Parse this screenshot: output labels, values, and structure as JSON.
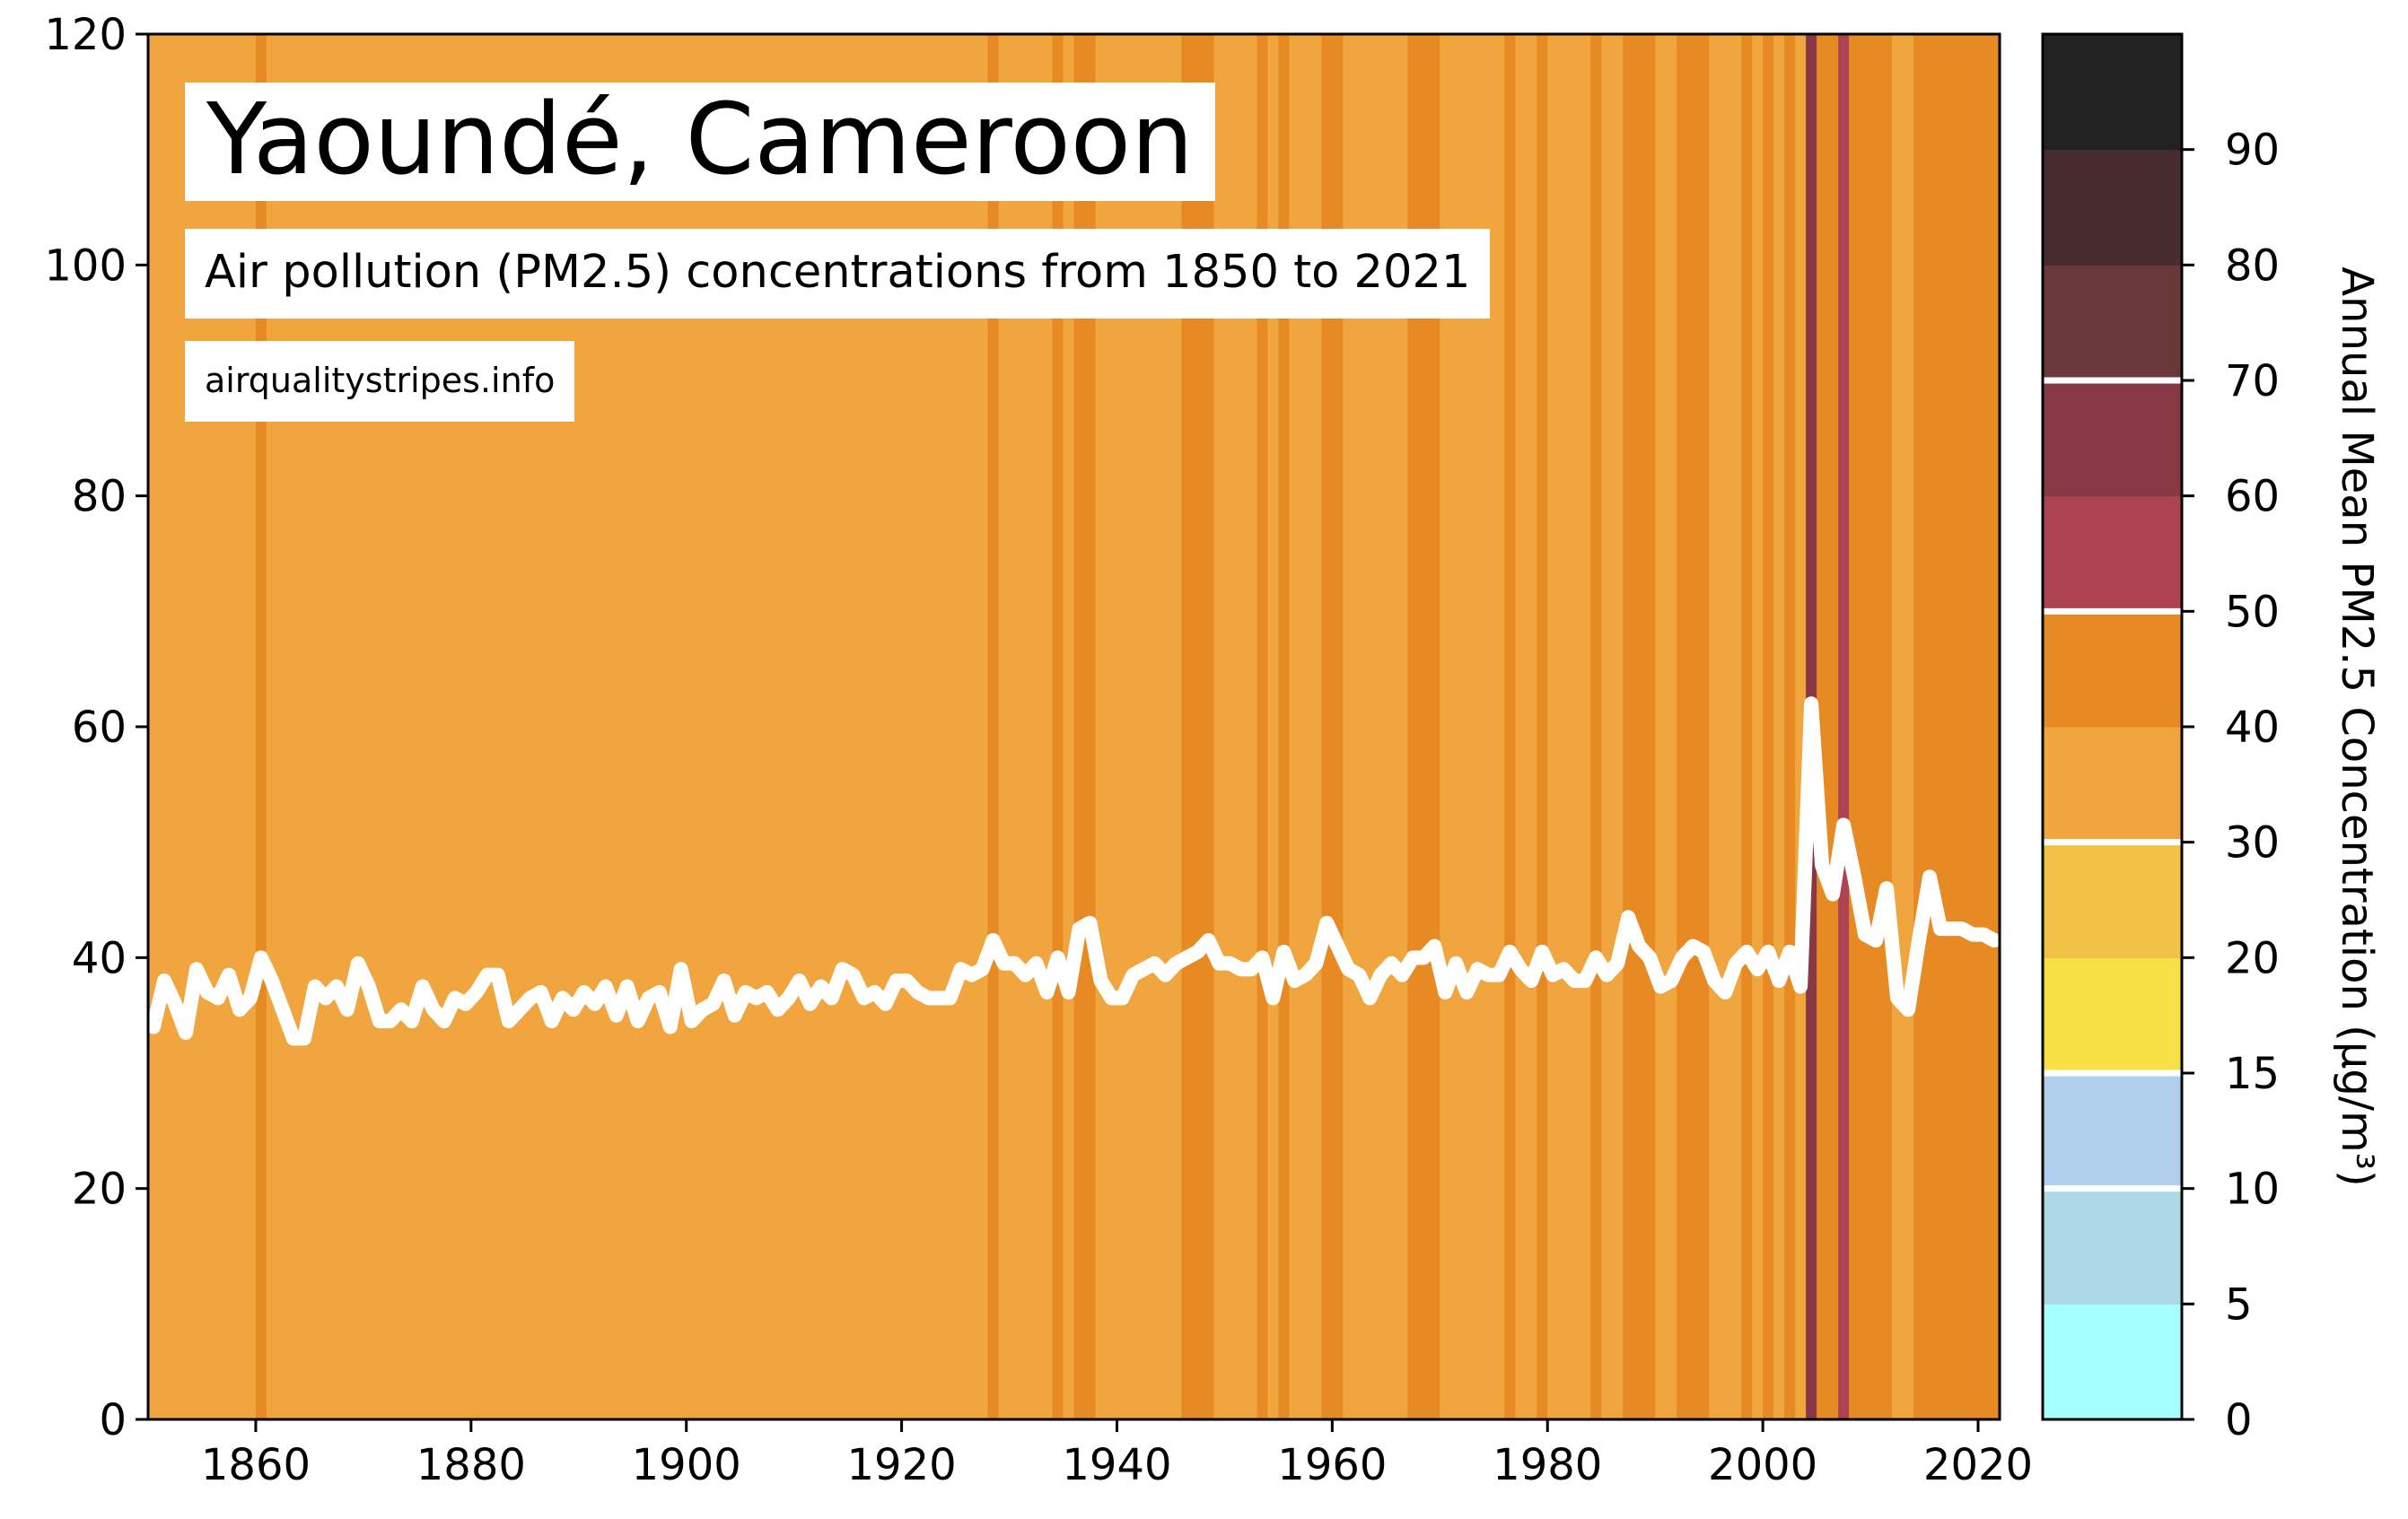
{
  "title": "Yaoundé, Cameroon",
  "subtitle": "Air pollution (PM2.5) concentrations from 1850 to 2021",
  "source": "airqualitystripes.info",
  "colorbar": {
    "label": "Annual Mean PM2.5 Concentration (µg/m³)",
    "ticks": [
      0,
      5,
      10,
      15,
      20,
      30,
      40,
      50,
      60,
      70,
      80,
      90
    ],
    "bins": [
      {
        "from": 0,
        "to": 5,
        "color": "#a6ffff"
      },
      {
        "from": 5,
        "to": 10,
        "color": "#add8e6"
      },
      {
        "from": 10,
        "to": 15,
        "color": "#b0cfec"
      },
      {
        "from": 15,
        "to": 20,
        "color": "#f7e045"
      },
      {
        "from": 20,
        "to": 30,
        "color": "#f2c246"
      },
      {
        "from": 30,
        "to": 40,
        "color": "#f0a53f"
      },
      {
        "from": 40,
        "to": 50,
        "color": "#e88a24"
      },
      {
        "from": 50,
        "to": 60,
        "color": "#ad4350"
      },
      {
        "from": 60,
        "to": 70,
        "color": "#883844"
      },
      {
        "from": 70,
        "to": 80,
        "color": "#6a383b"
      },
      {
        "from": 80,
        "to": 90,
        "color": "#462c2e"
      },
      {
        "from": 90,
        "to": 100,
        "color": "#222222"
      }
    ],
    "separators": [
      10,
      15,
      30,
      50,
      70
    ]
  },
  "chart_data": {
    "type": "line",
    "xlim": [
      1850,
      2022
    ],
    "ylim": [
      0,
      120
    ],
    "xticks": [
      1860,
      1880,
      1900,
      1920,
      1940,
      1960,
      1980,
      2000,
      2020
    ],
    "yticks": [
      0,
      20,
      40,
      60,
      80,
      100,
      120
    ],
    "grid": false,
    "line_color": "#ffffff",
    "stripes": "annual_values_colored_by_bins",
    "years_start": 1850,
    "values": [
      34.0,
      38.0,
      36.0,
      33.5,
      39.0,
      37.0,
      36.5,
      38.5,
      35.5,
      36.5,
      40.0,
      38.0,
      35.5,
      33.0,
      33.0,
      37.5,
      36.5,
      37.5,
      35.5,
      39.5,
      37.5,
      34.5,
      34.5,
      35.5,
      34.5,
      37.5,
      35.5,
      34.5,
      36.5,
      36.0,
      37.0,
      38.5,
      38.5,
      34.5,
      35.5,
      36.5,
      37.0,
      34.5,
      36.5,
      35.5,
      37.0,
      36.0,
      37.5,
      35.0,
      37.5,
      34.5,
      36.5,
      37.0,
      34.0,
      39.0,
      34.5,
      35.5,
      36.0,
      38.0,
      35.0,
      37.0,
      36.5,
      37.0,
      35.5,
      36.5,
      38.0,
      36.0,
      37.5,
      36.5,
      39.0,
      38.5,
      36.5,
      37.0,
      36.0,
      38.0,
      38.0,
      37.0,
      36.5,
      36.5,
      36.5,
      39.0,
      38.5,
      39.0,
      41.5,
      39.5,
      39.5,
      38.5,
      39.5,
      37.0,
      40.0,
      37.0,
      42.5,
      43.0,
      38.0,
      36.5,
      36.5,
      38.5,
      39.0,
      39.5,
      38.5,
      39.5,
      40.0,
      40.5,
      41.5,
      39.5,
      39.5,
      39.0,
      39.0,
      40.0,
      36.5,
      40.5,
      38.0,
      38.5,
      39.5,
      43.0,
      41.0,
      39.0,
      38.5,
      36.5,
      38.5,
      39.5,
      38.5,
      40.0,
      40.0,
      41.0,
      37.0,
      39.5,
      37.0,
      39.0,
      38.5,
      38.5,
      40.5,
      39.0,
      38.0,
      40.5,
      38.5,
      39.0,
      38.0,
      38.0,
      40.0,
      38.5,
      39.5,
      43.5,
      41.0,
      40.0,
      37.5,
      38.0,
      40.0,
      41.0,
      40.5,
      38.0,
      37.0,
      39.5,
      40.5,
      39.0,
      40.5,
      38.0,
      40.5,
      37.5,
      62.0,
      48.0,
      45.5,
      51.5,
      47.0,
      42.0,
      41.5,
      46.0,
      36.5,
      35.5,
      41.5,
      47.0,
      42.5,
      42.5,
      42.5,
      42.0,
      42.0,
      41.5
    ]
  }
}
